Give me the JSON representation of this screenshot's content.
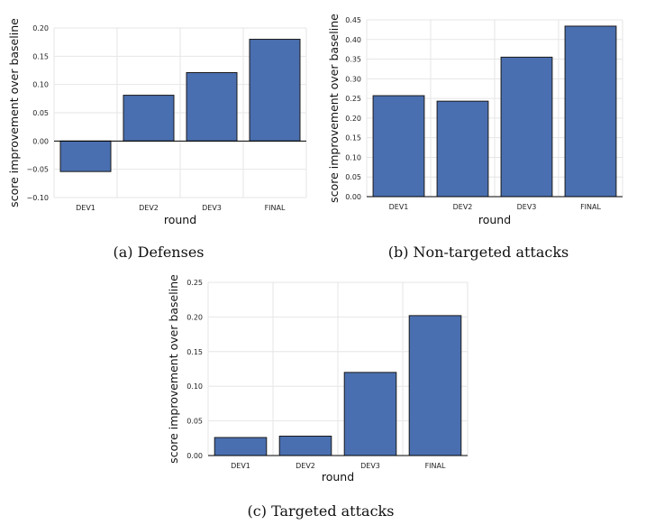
{
  "chart_data": [
    {
      "type": "bar",
      "caption": "(a) Defenses",
      "categories": [
        "DEV1",
        "DEV2",
        "DEV3",
        "FINAL"
      ],
      "values": [
        -0.054,
        0.081,
        0.121,
        0.18
      ],
      "yticks": [
        -0.1,
        -0.05,
        0.0,
        0.05,
        0.1,
        0.15,
        0.2
      ],
      "ytick_labels": [
        "−0.10",
        "−0.05",
        "0.00",
        "0.05",
        "0.10",
        "0.15",
        "0.20"
      ],
      "ylim": [
        -0.1,
        0.2
      ],
      "xlabel": "round",
      "ylabel": "score improvement over baseline",
      "grid": true
    },
    {
      "type": "bar",
      "caption": "(b) Non-targeted attacks",
      "categories": [
        "DEV1",
        "DEV2",
        "DEV3",
        "FINAL"
      ],
      "values": [
        0.257,
        0.243,
        0.355,
        0.434
      ],
      "yticks": [
        0.0,
        0.05,
        0.1,
        0.15,
        0.2,
        0.25,
        0.3,
        0.35,
        0.4,
        0.45
      ],
      "ytick_labels": [
        "0.00",
        "0.05",
        "0.10",
        "0.15",
        "0.20",
        "0.25",
        "0.30",
        "0.35",
        "0.40",
        "0.45"
      ],
      "ylim": [
        0.0,
        0.45
      ],
      "xlabel": "round",
      "ylabel": "score improvement over baseline",
      "grid": true
    },
    {
      "type": "bar",
      "caption": "(c) Targeted attacks",
      "categories": [
        "DEV1",
        "DEV2",
        "DEV3",
        "FINAL"
      ],
      "values": [
        0.026,
        0.028,
        0.12,
        0.202
      ],
      "yticks": [
        0.0,
        0.05,
        0.1,
        0.15,
        0.2,
        0.25
      ],
      "ytick_labels": [
        "0.00",
        "0.05",
        "0.10",
        "0.15",
        "0.20",
        "0.25"
      ],
      "ylim": [
        0.0,
        0.25
      ],
      "xlabel": "round",
      "ylabel": "score improvement over baseline",
      "grid": true
    }
  ]
}
